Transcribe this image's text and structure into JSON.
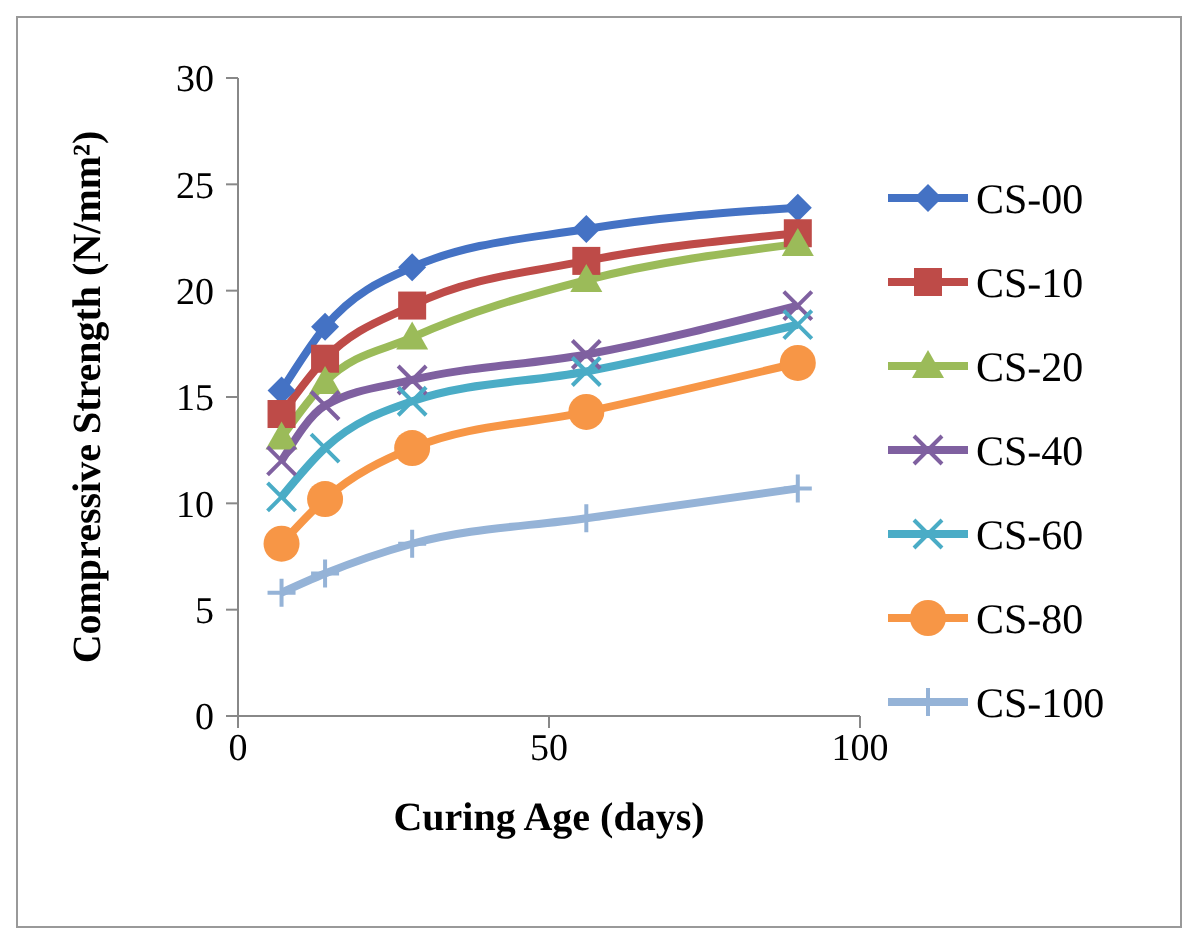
{
  "chart_data": {
    "type": "line",
    "xlabel": "Curing Age (days)",
    "ylabel": "Compressive Strength (N/mm²)",
    "x": [
      7,
      14,
      28,
      56,
      90
    ],
    "xlim": [
      0,
      100
    ],
    "xticks": [
      0,
      50,
      100
    ],
    "ylim": [
      0,
      30
    ],
    "yticks": [
      0,
      5,
      10,
      15,
      20,
      25,
      30
    ],
    "grid": false,
    "legend": "right",
    "line_style": "solid",
    "series": [
      {
        "name": "CS-00",
        "color": "#4472c4",
        "marker": "diamond",
        "values": [
          15.3,
          18.3,
          21.1,
          22.9,
          23.9
        ]
      },
      {
        "name": "CS-10",
        "color": "#be4b48",
        "marker": "square",
        "values": [
          14.2,
          16.8,
          19.3,
          21.4,
          22.7
        ]
      },
      {
        "name": "CS-20",
        "color": "#9bbb59",
        "marker": "triangle",
        "values": [
          13.1,
          15.7,
          17.8,
          20.5,
          22.2
        ]
      },
      {
        "name": "CS-40",
        "color": "#7f60a0",
        "marker": "cross",
        "values": [
          12.0,
          14.6,
          15.8,
          17.0,
          19.3
        ]
      },
      {
        "name": "CS-60",
        "color": "#4aacc6",
        "marker": "cross",
        "values": [
          10.3,
          12.6,
          14.8,
          16.2,
          18.4
        ]
      },
      {
        "name": "CS-80",
        "color": "#f79646",
        "marker": "circle",
        "values": [
          8.1,
          10.2,
          12.6,
          14.3,
          16.6
        ]
      },
      {
        "name": "CS-100",
        "color": "#95b3d7",
        "marker": "plus",
        "values": [
          5.8,
          6.7,
          8.1,
          9.3,
          10.7
        ]
      }
    ]
  }
}
